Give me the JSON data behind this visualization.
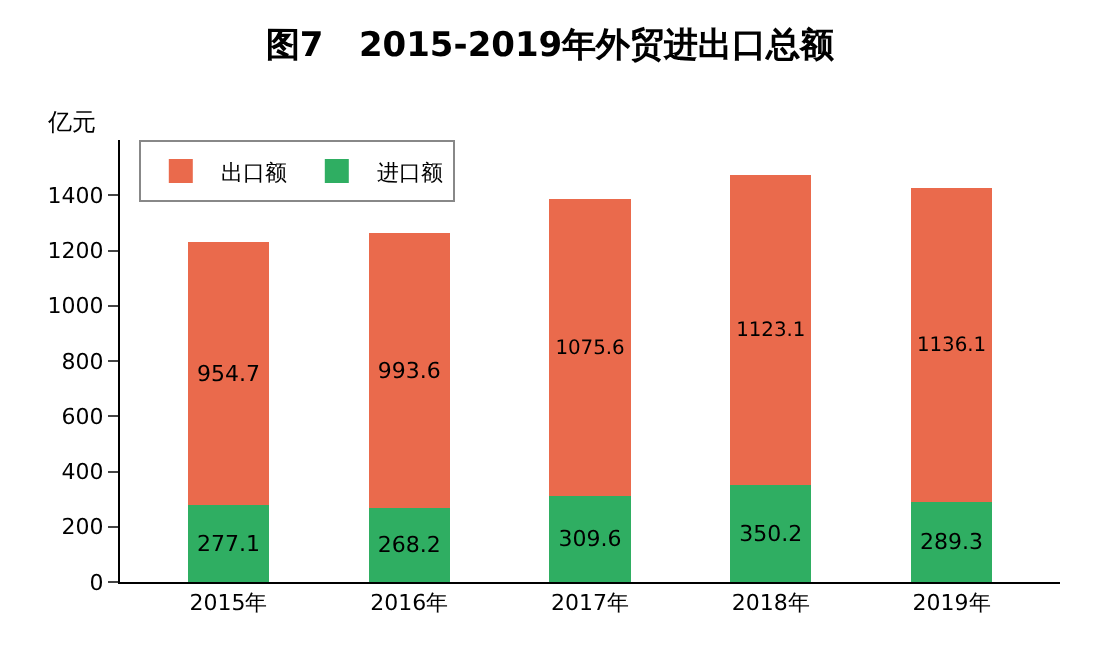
{
  "chart_data": {
    "type": "bar",
    "title": "图7   2015-2019年外贸进出口总额",
    "ylabel": "亿元",
    "categories": [
      "2015年",
      "2016年",
      "2017年",
      "2018年",
      "2019年"
    ],
    "stacked": true,
    "series": [
      {
        "name": "进口额",
        "color": "#2fae62",
        "values": [
          277.1,
          268.2,
          309.6,
          350.2,
          289.3
        ]
      },
      {
        "name": "出口额",
        "color": "#ea6a4c",
        "values": [
          954.7,
          993.6,
          1075.6,
          1123.1,
          1136.1
        ]
      }
    ],
    "ylim": [
      0,
      1600
    ],
    "yticks": [
      0,
      200,
      400,
      600,
      800,
      1000,
      1200,
      1400
    ],
    "data_labels": true,
    "legend": "top left",
    "grid": false
  }
}
